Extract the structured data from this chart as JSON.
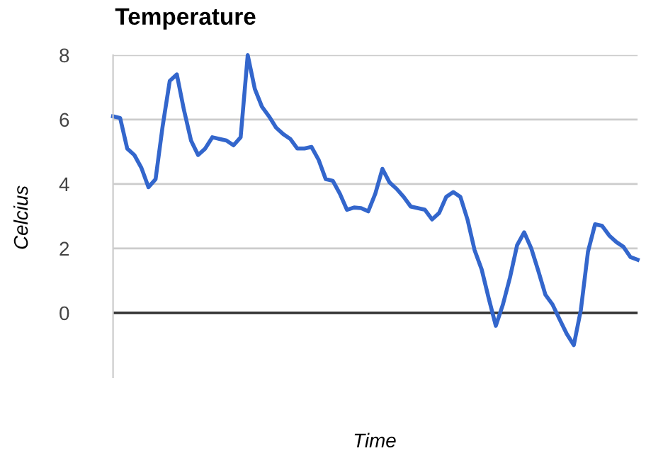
{
  "chart_data": {
    "type": "line",
    "title": "Temperature",
    "xlabel": "Time",
    "ylabel": "Celcius",
    "categories": [
      null,
      null,
      null,
      null,
      null,
      null,
      null,
      null,
      null,
      null,
      null,
      null,
      null,
      null,
      null,
      null,
      null,
      null,
      null,
      null,
      null,
      null,
      null,
      null,
      null,
      null,
      null,
      null,
      null,
      null,
      null,
      null,
      null,
      null,
      null,
      null,
      null,
      null,
      null,
      null,
      null,
      null,
      null,
      null,
      null,
      null,
      null,
      null,
      null,
      null,
      null,
      null,
      null,
      null,
      null,
      null,
      null,
      null,
      null,
      null,
      null,
      null,
      null,
      null,
      null,
      null,
      null,
      null,
      null,
      null,
      null,
      null,
      null,
      null,
      null
    ],
    "series": [
      {
        "color": "#3366cc",
        "values": [
          6.1,
          6.05,
          5.1,
          4.9,
          4.5,
          3.9,
          4.15,
          5.8,
          7.2,
          7.4,
          6.3,
          5.35,
          4.9,
          5.1,
          5.45,
          5.4,
          5.35,
          5.2,
          5.45,
          8.0,
          6.95,
          6.4,
          6.1,
          5.75,
          5.55,
          5.4,
          5.1,
          5.1,
          5.15,
          4.75,
          4.15,
          4.1,
          3.7,
          3.2,
          3.27,
          3.25,
          3.15,
          3.7,
          4.47,
          4.05,
          3.85,
          3.6,
          3.3,
          3.25,
          3.2,
          2.9,
          3.1,
          3.6,
          3.75,
          3.6,
          2.9,
          1.95,
          1.35,
          0.45,
          -0.4,
          0.26,
          1.1,
          2.1,
          2.5,
          2.0,
          1.3,
          0.56,
          0.26,
          -0.2,
          -0.65,
          -1.0,
          0.1,
          1.9,
          2.75,
          2.7,
          2.4,
          2.2,
          2.05,
          1.73,
          1.65
        ]
      }
    ],
    "ylim": [
      -2,
      8
    ],
    "yticks": [
      0,
      2,
      4,
      6,
      8
    ],
    "grid": "y",
    "tick_labels": "y",
    "ref_lines": [
      {
        "axis": "y",
        "value": 0,
        "color": "#333333"
      }
    ]
  }
}
